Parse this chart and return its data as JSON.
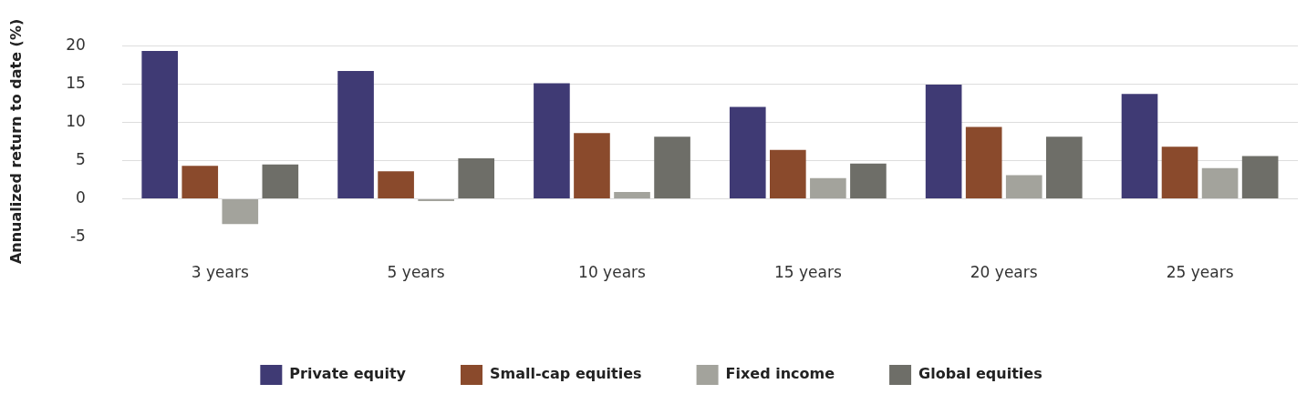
{
  "chart_data": {
    "type": "bar",
    "ylabel": "Annualized return to date (%)",
    "categories": [
      "3 years",
      "5 years",
      "10 years",
      "15 years",
      "20 years",
      "25 years"
    ],
    "series": [
      {
        "name": "Private equity",
        "color": "#3f3a74",
        "values": [
          19.3,
          16.7,
          15.1,
          12.0,
          14.9,
          13.7
        ]
      },
      {
        "name": "Small-cap equities",
        "color": "#8a4a2c",
        "values": [
          4.3,
          3.6,
          8.6,
          6.4,
          9.4,
          6.8
        ]
      },
      {
        "name": "Fixed income",
        "color": "#a3a39c",
        "values": [
          -3.3,
          -0.3,
          0.9,
          2.7,
          3.1,
          4.0
        ]
      },
      {
        "name": "Global equities",
        "color": "#6e6e68",
        "values": [
          4.5,
          5.3,
          8.1,
          4.6,
          8.1,
          5.6
        ]
      }
    ],
    "ylim": [
      -5,
      20
    ],
    "yticks": [
      -5,
      0,
      5,
      10,
      15,
      20
    ],
    "grid": "y",
    "legend": "bottom"
  }
}
